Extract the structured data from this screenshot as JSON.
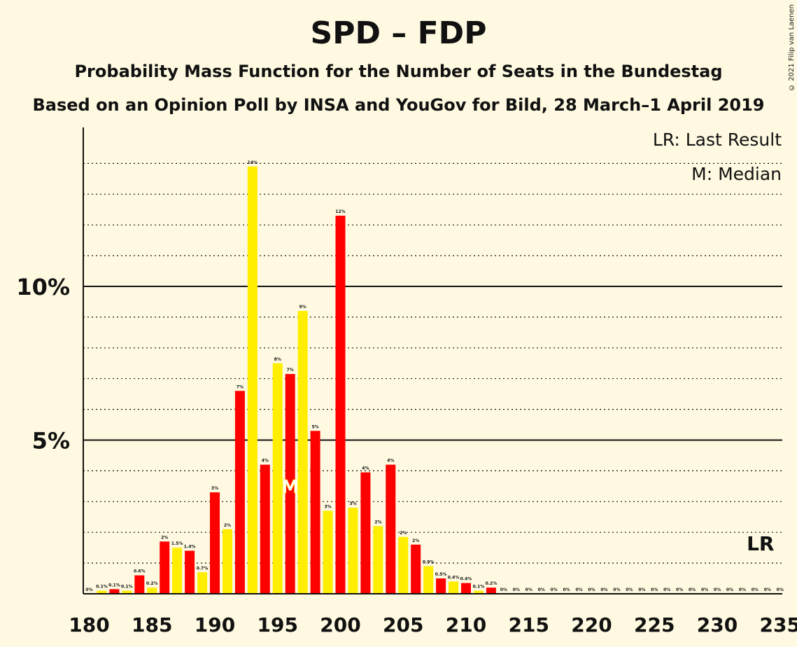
{
  "title": "SPD – FDP",
  "subtitle": "Probability Mass Function for the Number of Seats in the Bundestag",
  "subtitle2": "Based on an Opinion Poll by INSA and YouGov for Bild, 28 March–1 April 2019",
  "copyright": "© 2021 Filip van Laenen",
  "legend": {
    "last_result": "LR: Last Result",
    "median": "M: Median"
  },
  "markers": {
    "median_label": "M",
    "median_seat": 196,
    "last_result_label": "LR",
    "last_result_seat": 234
  },
  "colors": {
    "red": "#FF0000",
    "yellow": "#FFEE00",
    "background": "#FEF9E0"
  },
  "chart_data": {
    "type": "bar",
    "x": [
      180,
      181,
      182,
      183,
      184,
      185,
      186,
      187,
      188,
      189,
      190,
      191,
      192,
      193,
      194,
      195,
      196,
      197,
      198,
      199,
      200,
      201,
      202,
      203,
      204,
      205,
      206,
      207,
      208,
      209,
      210,
      211,
      212,
      213,
      214,
      215,
      216,
      217,
      218,
      219,
      220,
      221,
      222,
      223,
      224,
      225,
      226,
      227,
      228,
      229,
      230,
      231,
      232,
      233,
      234,
      235
    ],
    "values": [
      0,
      0.1,
      0.15,
      0.1,
      0.6,
      0.2,
      1.7,
      1.5,
      1.4,
      0.7,
      3.3,
      2.1,
      6.6,
      13.9,
      4.2,
      7.5,
      7.15,
      9.2,
      5.3,
      2.7,
      12.3,
      2.8,
      3.95,
      2.2,
      4.2,
      1.85,
      1.6,
      0.9,
      0.5,
      0.4,
      0.35,
      0.1,
      0.2,
      0,
      0,
      0,
      0,
      0,
      0,
      0,
      0,
      0,
      0,
      0,
      0,
      0,
      0,
      0,
      0,
      0,
      0,
      0,
      0,
      0,
      0,
      0
    ],
    "labels": [
      "0%",
      "0.1%",
      "0.1%",
      "0.1%",
      "0.6%",
      "0.2%",
      "2%",
      "1.5%",
      "1.4%",
      "0.7%",
      "3%",
      "2%",
      "7%",
      "14%",
      "4%",
      "8%",
      "7%",
      "9%",
      "5%",
      "3%",
      "12%",
      "3%",
      "4%",
      "2%",
      "4%",
      "2%",
      "2%",
      "0.9%",
      "0.5%",
      "0.4%",
      "0.4%",
      "0.1%",
      "0.2%",
      "0%",
      "0%",
      "0%",
      "0%",
      "0%",
      "0%",
      "0%",
      "0%",
      "0%",
      "0%",
      "0%",
      "0%",
      "0%",
      "0%",
      "0%",
      "0%",
      "0%",
      "0%",
      "0%",
      "0%",
      "0%",
      "0%",
      "0%"
    ],
    "x_ticks": [
      "180",
      "185",
      "190",
      "195",
      "200",
      "205",
      "210",
      "215",
      "220",
      "225",
      "230",
      "235"
    ],
    "x_tick_values": [
      180,
      185,
      190,
      195,
      200,
      205,
      210,
      215,
      220,
      225,
      230,
      235
    ],
    "y_ticks": [
      "5%",
      "10%"
    ],
    "y_tick_values": [
      5,
      10
    ],
    "xlim": [
      180,
      235
    ],
    "ylim": [
      0,
      15
    ],
    "grid": "dotted every 1%, solid at 5% and 10%",
    "legend_position": "top-right"
  }
}
